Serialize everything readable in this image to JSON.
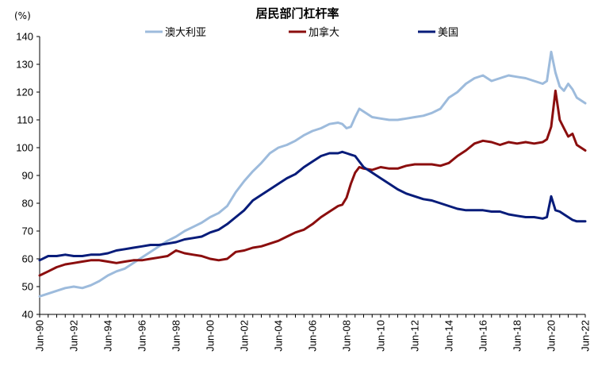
{
  "chart_data": {
    "type": "line",
    "title": "居民部门杠杆率",
    "ylabel": "(%)",
    "xlabel": "",
    "ylim": [
      40,
      140
    ],
    "yticks": [
      40,
      50,
      60,
      70,
      80,
      90,
      100,
      110,
      120,
      130,
      140
    ],
    "x_ticks": [
      "Jun-90",
      "Jun-92",
      "Jun-94",
      "Jun-96",
      "Jun-98",
      "Jun-00",
      "Jun-02",
      "Jun-04",
      "Jun-06",
      "Jun-08",
      "Jun-10",
      "Jun-12",
      "Jun-14",
      "Jun-16",
      "Jun-18",
      "Jun-20",
      "Jun-22"
    ],
    "x_tick_years": [
      1990.5,
      1992.5,
      1994.5,
      1996.5,
      1998.5,
      2000.5,
      2002.5,
      2004.5,
      2006.5,
      2008.5,
      2010.5,
      2012.5,
      2014.5,
      2016.5,
      2018.5,
      2020.5,
      2022.5
    ],
    "xlim": [
      1990.5,
      2022.5
    ],
    "grid": false,
    "legend": "top",
    "series": [
      {
        "name": "澳大利亚",
        "color": "#9dbbdc",
        "x": [
          1990.5,
          1991,
          1991.5,
          1992,
          1992.5,
          1993,
          1993.5,
          1994,
          1994.5,
          1995,
          1995.5,
          1996,
          1996.5,
          1997,
          1997.5,
          1998,
          1998.5,
          1999,
          1999.5,
          2000,
          2000.5,
          2001,
          2001.5,
          2002,
          2002.5,
          2003,
          2003.5,
          2004,
          2004.5,
          2005,
          2005.5,
          2006,
          2006.5,
          2007,
          2007.5,
          2008,
          2008.25,
          2008.5,
          2008.75,
          2009,
          2009.25,
          2009.5,
          2010,
          2010.5,
          2011,
          2011.5,
          2012,
          2012.5,
          2013,
          2013.5,
          2014,
          2014.5,
          2015,
          2015.5,
          2016,
          2016.5,
          2017,
          2017.5,
          2018,
          2018.5,
          2019,
          2019.5,
          2020,
          2020.25,
          2020.5,
          2020.75,
          2021,
          2021.25,
          2021.5,
          2021.75,
          2022,
          2022.5
        ],
        "y": [
          46.5,
          47.5,
          48.5,
          49.5,
          50,
          49.5,
          50.5,
          52,
          54,
          55.5,
          56.5,
          58.5,
          60.5,
          62.5,
          64.5,
          66.5,
          68,
          70,
          71.5,
          73,
          75,
          76.5,
          79,
          84,
          88,
          91.5,
          94.5,
          98,
          100,
          101,
          102.5,
          104.5,
          106,
          107,
          108.5,
          109,
          108.5,
          107,
          107.5,
          111,
          114,
          113,
          111,
          110.5,
          110,
          110,
          110.5,
          111,
          111.5,
          112.5,
          114,
          118,
          120,
          123,
          125,
          126,
          124,
          125,
          126,
          125.5,
          125,
          124,
          123,
          124,
          134.5,
          127,
          122,
          120.5,
          123,
          121,
          118,
          116
        ]
      },
      {
        "name": "加拿大",
        "color": "#8b0e0e",
        "x": [
          1990.5,
          1991,
          1991.5,
          1992,
          1992.5,
          1993,
          1993.5,
          1994,
          1994.5,
          1995,
          1995.5,
          1996,
          1996.5,
          1997,
          1997.5,
          1998,
          1998.5,
          1999,
          1999.5,
          2000,
          2000.5,
          2001,
          2001.5,
          2002,
          2002.5,
          2003,
          2003.5,
          2004,
          2004.5,
          2005,
          2005.5,
          2006,
          2006.5,
          2007,
          2007.5,
          2008,
          2008.25,
          2008.5,
          2008.75,
          2009,
          2009.25,
          2009.5,
          2010,
          2010.5,
          2011,
          2011.5,
          2012,
          2012.5,
          2013,
          2013.5,
          2014,
          2014.5,
          2015,
          2015.5,
          2016,
          2016.5,
          2017,
          2017.5,
          2018,
          2018.5,
          2019,
          2019.5,
          2020,
          2020.25,
          2020.5,
          2020.75,
          2021,
          2021.25,
          2021.5,
          2021.75,
          2022,
          2022.5
        ],
        "y": [
          54,
          55.5,
          57,
          58,
          58.5,
          59,
          59.5,
          59.5,
          59,
          58.5,
          59,
          59.5,
          59.5,
          60,
          60.5,
          61,
          63,
          62,
          61.5,
          61,
          60,
          59.5,
          60,
          62.5,
          63,
          64,
          64.5,
          65.5,
          66.5,
          68,
          69.5,
          70.5,
          72.5,
          75,
          77,
          79,
          79.5,
          82,
          87,
          91,
          93,
          92.5,
          92,
          93,
          92.5,
          92.5,
          93.5,
          94,
          94,
          94,
          93.5,
          94.5,
          97,
          99,
          101.5,
          102.5,
          102,
          101,
          102,
          101.5,
          102,
          101.5,
          102,
          103,
          107.5,
          120.5,
          110,
          107,
          104,
          105,
          101,
          99
        ]
      },
      {
        "name": "美国",
        "color": "#071c7a",
        "x": [
          1990.5,
          1991,
          1991.5,
          1992,
          1992.5,
          1993,
          1993.5,
          1994,
          1994.5,
          1995,
          1995.5,
          1996,
          1996.5,
          1997,
          1997.5,
          1998,
          1998.5,
          1999,
          1999.5,
          2000,
          2000.5,
          2001,
          2001.5,
          2002,
          2002.5,
          2003,
          2003.5,
          2004,
          2004.5,
          2005,
          2005.5,
          2006,
          2006.5,
          2007,
          2007.5,
          2008,
          2008.25,
          2008.5,
          2008.75,
          2009,
          2009.25,
          2009.5,
          2010,
          2010.5,
          2011,
          2011.5,
          2012,
          2012.5,
          2013,
          2013.5,
          2014,
          2014.5,
          2015,
          2015.5,
          2016,
          2016.5,
          2017,
          2017.5,
          2018,
          2018.5,
          2019,
          2019.5,
          2020,
          2020.25,
          2020.5,
          2020.75,
          2021,
          2021.25,
          2021.5,
          2021.75,
          2022,
          2022.5
        ],
        "y": [
          59.5,
          61,
          61,
          61.5,
          61,
          61,
          61.5,
          61.5,
          62,
          63,
          63.5,
          64,
          64.5,
          65,
          65,
          65.5,
          66,
          67,
          67.5,
          68,
          69.5,
          70.5,
          72.5,
          75,
          77.5,
          81,
          83,
          85,
          87,
          89,
          90.5,
          93,
          95,
          97,
          98,
          98,
          98.5,
          98,
          97.5,
          97,
          95,
          93,
          91,
          89,
          87,
          85,
          83.5,
          82.5,
          81.5,
          81,
          80,
          79,
          78,
          77.5,
          77.5,
          77.5,
          77,
          77,
          76,
          75.5,
          75,
          75,
          74.5,
          75,
          82.5,
          77.5,
          77,
          76,
          75,
          74,
          73.5,
          73.5
        ]
      }
    ]
  }
}
